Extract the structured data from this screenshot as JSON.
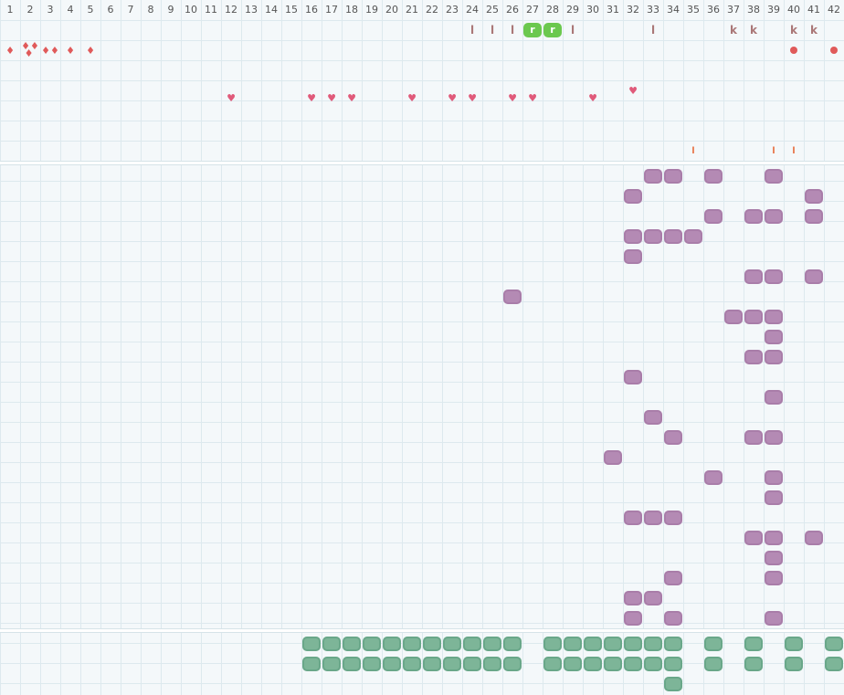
{
  "columns": [
    "1",
    "2",
    "3",
    "4",
    "5",
    "6",
    "7",
    "8",
    "9",
    "10",
    "11",
    "12",
    "13",
    "14",
    "15",
    "16",
    "17",
    "18",
    "19",
    "20",
    "21",
    "22",
    "23",
    "24",
    "25",
    "26",
    "27",
    "28",
    "29",
    "30",
    "31",
    "32",
    "33",
    "34",
    "35",
    "36",
    "37",
    "38",
    "39",
    "40",
    "41",
    "42"
  ],
  "colors": {
    "purple": "#b48ab4",
    "teal": "#7db598",
    "green": "#6bc84e",
    "red": "#e05a5a",
    "pink": "#e05a7a",
    "orange": "#e8754a"
  },
  "top_marks": [
    {
      "col": 24,
      "row": 1,
      "glyph": "l"
    },
    {
      "col": 25,
      "row": 1,
      "glyph": "l"
    },
    {
      "col": 26,
      "row": 1,
      "glyph": "l"
    },
    {
      "col": 27,
      "row": 1,
      "glyph": "r",
      "style": "green"
    },
    {
      "col": 28,
      "row": 1,
      "glyph": "r",
      "style": "green"
    },
    {
      "col": 29,
      "row": 1,
      "glyph": "l"
    },
    {
      "col": 33,
      "row": 1,
      "glyph": "l"
    },
    {
      "col": 37,
      "row": 1,
      "glyph": "k"
    },
    {
      "col": 38,
      "row": 1,
      "glyph": "k"
    },
    {
      "col": 40,
      "row": 1,
      "glyph": "k"
    },
    {
      "col": 41,
      "row": 1,
      "glyph": "k"
    },
    {
      "col": 1,
      "row": 2,
      "glyph": "drop"
    },
    {
      "col": 2,
      "row": 2,
      "glyph": "drops"
    },
    {
      "col": 3,
      "row": 2,
      "glyph": "drop2"
    },
    {
      "col": 4,
      "row": 2,
      "glyph": "drop"
    },
    {
      "col": 5,
      "row": 2,
      "glyph": "drop"
    },
    {
      "col": 40,
      "row": 2,
      "glyph": "dot"
    },
    {
      "col": 42,
      "row": 2,
      "glyph": "dot"
    },
    {
      "col": 32,
      "row": 4,
      "glyph": "heart"
    },
    {
      "col": 12,
      "row": 4.4,
      "glyph": "heart"
    },
    {
      "col": 16,
      "row": 4.4,
      "glyph": "heart"
    },
    {
      "col": 17,
      "row": 4.4,
      "glyph": "heart"
    },
    {
      "col": 18,
      "row": 4.4,
      "glyph": "heart"
    },
    {
      "col": 21,
      "row": 4.4,
      "glyph": "heart"
    },
    {
      "col": 23,
      "row": 4.4,
      "glyph": "heart"
    },
    {
      "col": 24,
      "row": 4.4,
      "glyph": "heart"
    },
    {
      "col": 26,
      "row": 4.4,
      "glyph": "heart"
    },
    {
      "col": 27,
      "row": 4.4,
      "glyph": "heart"
    },
    {
      "col": 30,
      "row": 4.4,
      "glyph": "heart"
    },
    {
      "col": 35,
      "row": 7,
      "glyph": "tick"
    },
    {
      "col": 39,
      "row": 7,
      "glyph": "tick"
    },
    {
      "col": 40,
      "row": 7,
      "glyph": "tick"
    }
  ],
  "middle_blobs": [
    [
      33,
      0
    ],
    [
      34,
      0
    ],
    [
      36,
      0
    ],
    [
      39,
      0
    ],
    [
      32,
      1
    ],
    [
      41,
      1
    ],
    [
      36,
      2
    ],
    [
      38,
      2
    ],
    [
      39,
      2
    ],
    [
      41,
      2
    ],
    [
      32,
      3
    ],
    [
      33,
      3
    ],
    [
      34,
      3
    ],
    [
      35,
      3
    ],
    [
      32,
      4
    ],
    [
      38,
      5
    ],
    [
      39,
      5
    ],
    [
      41,
      5
    ],
    [
      26,
      6
    ],
    [
      37,
      7
    ],
    [
      38,
      7
    ],
    [
      39,
      7
    ],
    [
      39,
      8
    ],
    [
      38,
      9
    ],
    [
      39,
      9
    ],
    [
      32,
      10
    ],
    [
      39,
      11
    ],
    [
      33,
      12
    ],
    [
      34,
      13
    ],
    [
      38,
      13
    ],
    [
      39,
      13
    ],
    [
      31,
      14
    ],
    [
      36,
      15
    ],
    [
      39,
      15
    ],
    [
      39,
      16
    ],
    [
      32,
      17
    ],
    [
      33,
      17
    ],
    [
      34,
      17
    ],
    [
      38,
      18
    ],
    [
      39,
      18
    ],
    [
      41,
      18
    ],
    [
      39,
      19
    ],
    [
      34,
      20
    ],
    [
      39,
      20
    ],
    [
      32,
      21
    ],
    [
      33,
      21
    ],
    [
      32,
      22
    ],
    [
      34,
      22
    ],
    [
      39,
      22
    ]
  ],
  "bottom_blobs": [
    [
      16,
      0
    ],
    [
      17,
      0
    ],
    [
      18,
      0
    ],
    [
      19,
      0
    ],
    [
      20,
      0
    ],
    [
      21,
      0
    ],
    [
      22,
      0
    ],
    [
      23,
      0
    ],
    [
      24,
      0
    ],
    [
      25,
      0
    ],
    [
      26,
      0
    ],
    [
      28,
      0
    ],
    [
      29,
      0
    ],
    [
      30,
      0
    ],
    [
      31,
      0
    ],
    [
      32,
      0
    ],
    [
      33,
      0
    ],
    [
      34,
      0
    ],
    [
      36,
      0
    ],
    [
      38,
      0
    ],
    [
      40,
      0
    ],
    [
      42,
      0
    ],
    [
      16,
      1
    ],
    [
      17,
      1
    ],
    [
      18,
      1
    ],
    [
      19,
      1
    ],
    [
      20,
      1
    ],
    [
      21,
      1
    ],
    [
      22,
      1
    ],
    [
      23,
      1
    ],
    [
      24,
      1
    ],
    [
      25,
      1
    ],
    [
      26,
      1
    ],
    [
      28,
      1
    ],
    [
      29,
      1
    ],
    [
      30,
      1
    ],
    [
      31,
      1
    ],
    [
      32,
      1
    ],
    [
      33,
      1
    ],
    [
      34,
      1
    ],
    [
      36,
      1
    ],
    [
      38,
      1
    ],
    [
      40,
      1
    ],
    [
      42,
      1
    ],
    [
      34,
      2
    ]
  ]
}
